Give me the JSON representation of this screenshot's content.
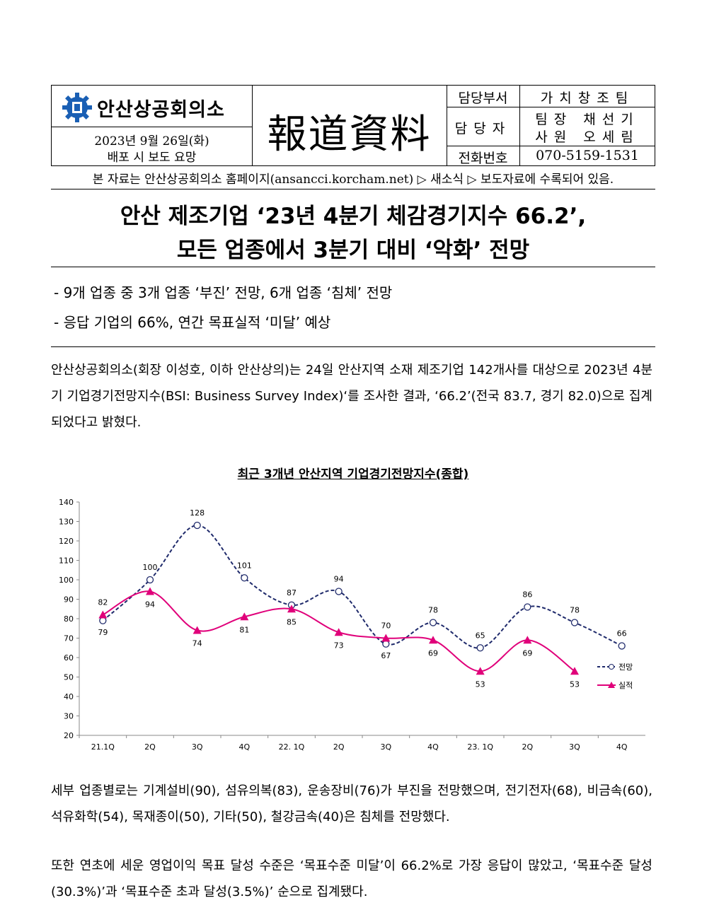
{
  "header": {
    "org_name": "안산상공회의소",
    "date": "2023년 9월 26일(화)",
    "release": "배포 시 보도 요망",
    "doc_type": "報道資料",
    "contact": [
      {
        "label": "담당부서",
        "value": "가치창조팀"
      },
      {
        "label": "담당자",
        "value": "팀장 채선기",
        "value2": "사원 오세림"
      },
      {
        "label": "전화번호",
        "value": "070-5159-1531"
      }
    ]
  },
  "notice": "본 자료는 안산상공회의소 홈페이지(ansancci.korcham.net) ▷ 새소식 ▷ 보도자료에 수록되어 있음.",
  "headline": {
    "line1": "안산 제조기업 ‘23년 4분기 체감경기지수 66.2’,",
    "line2": "모든 업종에서 3분기 대비 ‘악화’ 전망"
  },
  "bullets": [
    "- 9개 업종 중 3개 업종 ‘부진’ 전망, 6개 업종 ‘침체’ 전망",
    "- 응답 기업의 66%, 연간 목표실적 ‘미달’ 예상"
  ],
  "paragraphs": [
    "안산상공회의소(회장 이성호, 이하 안산상의)는 24일 안산지역 소재 제조기업 142개사를 대상으로 2023년 4분기 기업경기전망지수(BSI: Business Survey Index)‘를 조사한 결과, ‘66.2’(전국 83.7, 경기 82.0)으로 집계되었다고 밝혔다.",
    "세부 업종별로는 기계설비(90), 섬유의복(83), 운송장비(76)가 부진을 전망했으며, 전기전자(68), 비금속(60), 석유화학(54), 목재종이(50), 기타(50), 철강금속(40)은 침체를 전망했다.",
    "또한 연초에 세운 영업이익 목표 달성 수준은 ‘목표수준 미달’이 66.2%로 가장 응답이 많았고, ‘목표수준 달성(30.3%)’과 ‘목표수준 초과 달성(3.5%)’ 순으로 집계됐다."
  ],
  "chart_data": {
    "type": "line",
    "title": "최근 3개년 안산지역 기업경기전망지수(종합)",
    "categories": [
      "21.1Q",
      "2Q",
      "3Q",
      "4Q",
      "22. 1Q",
      "2Q",
      "3Q",
      "4Q",
      "23. 1Q",
      "2Q",
      "3Q",
      "4Q"
    ],
    "ylim": [
      20,
      140
    ],
    "yticks": [
      20,
      30,
      40,
      50,
      60,
      70,
      80,
      90,
      100,
      110,
      120,
      130,
      140
    ],
    "legend_position": "right",
    "series": [
      {
        "name": "전망",
        "color": "#1f2a6b",
        "style": "dashed-circle",
        "values": [
          79,
          100,
          128,
          101,
          87,
          94,
          67,
          78,
          65,
          86,
          78,
          66
        ]
      },
      {
        "name": "실적",
        "color": "#e0007a",
        "style": "solid-triangle",
        "values": [
          82,
          94,
          74,
          81,
          85,
          73,
          70,
          69,
          53,
          69,
          53,
          null
        ]
      }
    ]
  }
}
